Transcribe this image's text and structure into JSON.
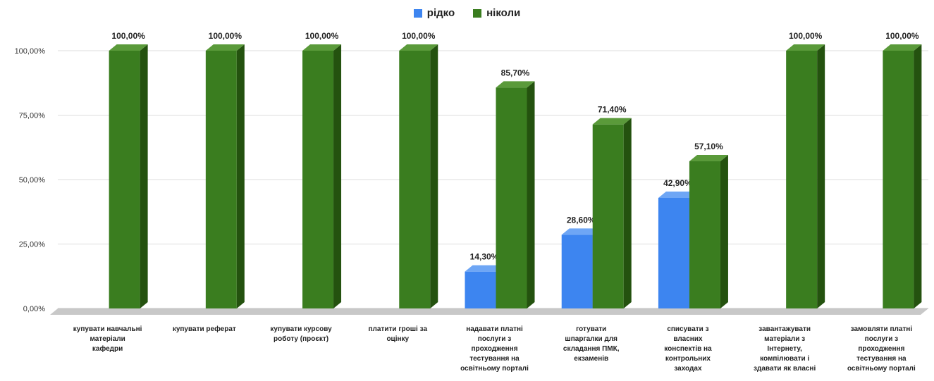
{
  "chart_data": {
    "type": "bar",
    "categories": [
      [
        "купувати навчальні",
        "матеріали",
        "кафедри"
      ],
      [
        "купувати реферат"
      ],
      [
        "купувати курсову",
        "роботу (проєкт)"
      ],
      [
        "платити гроші за",
        "оцінку"
      ],
      [
        "надавати платні",
        "послуги з",
        "проходження",
        "тестування на",
        "освітньому порталі"
      ],
      [
        "готувати",
        "шпаргалки для",
        "складання ПМК,",
        "екзаменів"
      ],
      [
        "списувати з",
        "власних",
        "конспектів на",
        "контрольних",
        "заходах"
      ],
      [
        "завантажувати",
        "матеріали з",
        "Інтернету,",
        "компілювати і",
        "здавати як власні"
      ],
      [
        "замовляти платні",
        "послуги з",
        "проходження",
        "тестування на",
        "освітньому порталі"
      ]
    ],
    "series": [
      {
        "name": "рідко",
        "color": "#3d85f0",
        "side": "#2a62c0",
        "top": "#6ea6f5",
        "values": [
          null,
          null,
          null,
          null,
          14.3,
          28.6,
          42.9,
          null,
          null
        ],
        "labels": [
          "",
          "",
          "",
          "",
          "14,30%",
          "28,60%",
          "42,90%",
          "",
          ""
        ]
      },
      {
        "name": "ніколи",
        "color": "#3a7d1f",
        "side": "#24520f",
        "top": "#5a9a3a",
        "values": [
          100,
          100,
          100,
          100,
          85.7,
          71.4,
          57.1,
          100,
          100
        ],
        "labels": [
          "100,00%",
          "100,00%",
          "100,00%",
          "100,00%",
          "85,70%",
          "71,40%",
          "57,10%",
          "100,00%",
          "100,00%"
        ]
      }
    ],
    "ylim": [
      0,
      100
    ],
    "yticks": [
      0,
      25,
      50,
      75,
      100
    ],
    "ytick_labels": [
      "0,00%",
      "25,00%",
      "50,00%",
      "75,00%",
      "100,00%"
    ],
    "legend_position": "top-center",
    "grid": true
  }
}
